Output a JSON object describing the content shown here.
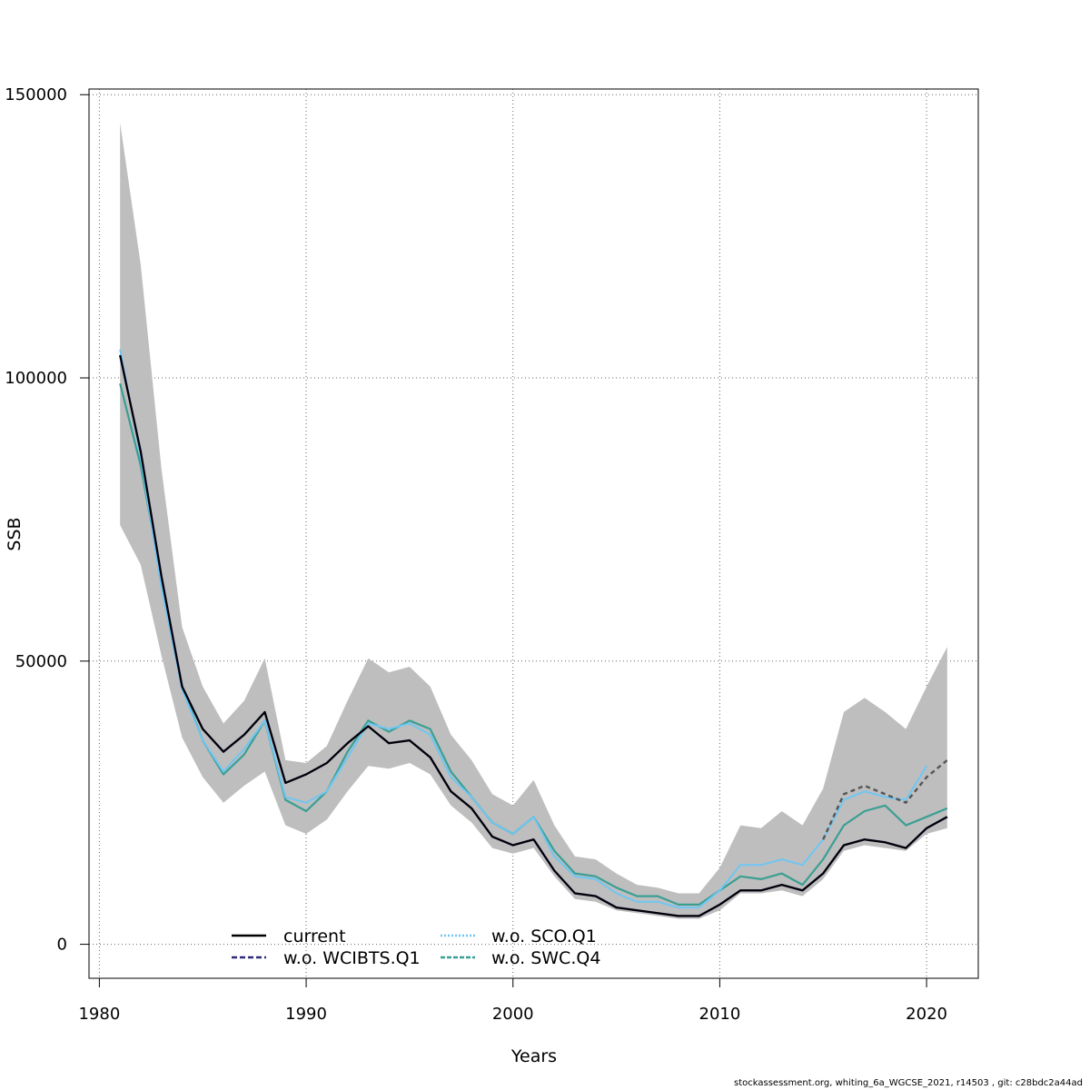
{
  "footer": "stockassessment.org, whiting_6a_WGCSE_2021, r14503 , git: c28bdc2a44ad",
  "chart_data": {
    "type": "line",
    "xlabel": "Years",
    "ylabel": "SSB",
    "xlim": [
      1979.5,
      2022.5
    ],
    "ylim": [
      -6000,
      151000
    ],
    "xticks": [
      1980,
      1990,
      2000,
      2010,
      2020
    ],
    "yticks": [
      0,
      50000,
      100000,
      150000
    ],
    "grid": true,
    "legend_position": "bottom-left",
    "x": [
      1981,
      1982,
      1983,
      1984,
      1985,
      1986,
      1987,
      1988,
      1989,
      1990,
      1991,
      1992,
      1993,
      1994,
      1995,
      1996,
      1997,
      1998,
      1999,
      2000,
      2001,
      2002,
      2003,
      2004,
      2005,
      2006,
      2007,
      2008,
      2009,
      2010,
      2011,
      2012,
      2013,
      2014,
      2015,
      2016,
      2017,
      2018,
      2019,
      2020,
      2021
    ],
    "band": {
      "color": "#bebebe",
      "lower": [
        74000,
        67000,
        51000,
        36500,
        29500,
        25000,
        28000,
        30500,
        21000,
        19500,
        22000,
        27000,
        31500,
        31000,
        32000,
        30000,
        24500,
        21500,
        17000,
        16000,
        17000,
        12000,
        8000,
        7500,
        6000,
        5500,
        5000,
        4500,
        4500,
        6000,
        9000,
        9000,
        9500,
        8500,
        11500,
        16500,
        17500,
        17000,
        16500,
        19500,
        20500
      ],
      "upper": [
        145000,
        120000,
        84000,
        56000,
        45500,
        39000,
        43000,
        50500,
        32500,
        32000,
        35000,
        43000,
        50500,
        48000,
        49000,
        45500,
        37000,
        32500,
        26500,
        24500,
        29000,
        21000,
        15500,
        15000,
        12500,
        10500,
        10000,
        9000,
        9000,
        13500,
        21000,
        20500,
        23500,
        21000,
        27500,
        41000,
        43500,
        41000,
        38000,
        45500,
        52500
      ]
    },
    "series": [
      {
        "name": "current",
        "color": "#000000",
        "dash": "",
        "values": [
          104000,
          87000,
          65000,
          45500,
          38000,
          34000,
          37000,
          41000,
          28500,
          30000,
          32000,
          35500,
          38500,
          35500,
          36000,
          33000,
          27000,
          24000,
          19000,
          17500,
          18500,
          13000,
          9000,
          8500,
          6500,
          6000,
          5500,
          5000,
          5000,
          7000,
          9500,
          9500,
          10500,
          9500,
          12500,
          17500,
          18500,
          18000,
          17000,
          20500,
          22500
        ]
      },
      {
        "name": "w.o. WCIBTS.Q1",
        "color": "#2e2a7a",
        "dash": "6 3",
        "values": [
          104000,
          87000,
          65000,
          45500,
          38000,
          34000,
          37000,
          41000,
          28500,
          30000,
          32000,
          35500,
          38500,
          35500,
          36000,
          33000,
          27000,
          24000,
          19000,
          17500,
          18500,
          13000,
          9000,
          8500,
          6500,
          6000,
          5500,
          5000,
          5000,
          7000,
          9500,
          9500,
          10500,
          9500,
          12500,
          17500,
          18500,
          18000,
          17000,
          20500,
          22500
        ]
      },
      {
        "name": "w.o. SCO.Q1",
        "color": "#6fc6f2",
        "dash": "2 2",
        "values": [
          105000,
          86000,
          63000,
          45000,
          36000,
          30500,
          34500,
          39500,
          26000,
          25000,
          27000,
          33000,
          39000,
          38000,
          39000,
          37000,
          29500,
          26000,
          21500,
          19500,
          22500,
          15500,
          12000,
          11500,
          9000,
          7500,
          7500,
          6500,
          6500,
          9500,
          14000,
          14000,
          15000,
          14000,
          18500,
          25500,
          27000,
          26000,
          25500,
          31500,
          null
        ]
      },
      {
        "name": "w.o. SWC.Q4",
        "color": "#3a9f93",
        "dash": "5 2",
        "values": [
          99000,
          84500,
          64500,
          45500,
          36000,
          30000,
          33500,
          39500,
          25500,
          23500,
          27000,
          34000,
          39500,
          37500,
          39500,
          38000,
          30500,
          26000,
          21500,
          19500,
          22500,
          16500,
          12500,
          12000,
          10000,
          8500,
          8500,
          7000,
          7000,
          9500,
          12000,
          11500,
          12500,
          10500,
          15000,
          21000,
          23500,
          24500,
          21000,
          22500,
          24000
        ]
      }
    ],
    "overlay_current_2016_2021": {
      "color": "#555555",
      "dash": "5 4",
      "x": [
        2015,
        2016,
        2017,
        2018,
        2019,
        2020,
        2021
      ],
      "values": [
        18500,
        26500,
        28000,
        26500,
        25000,
        29500,
        32500
      ]
    }
  }
}
